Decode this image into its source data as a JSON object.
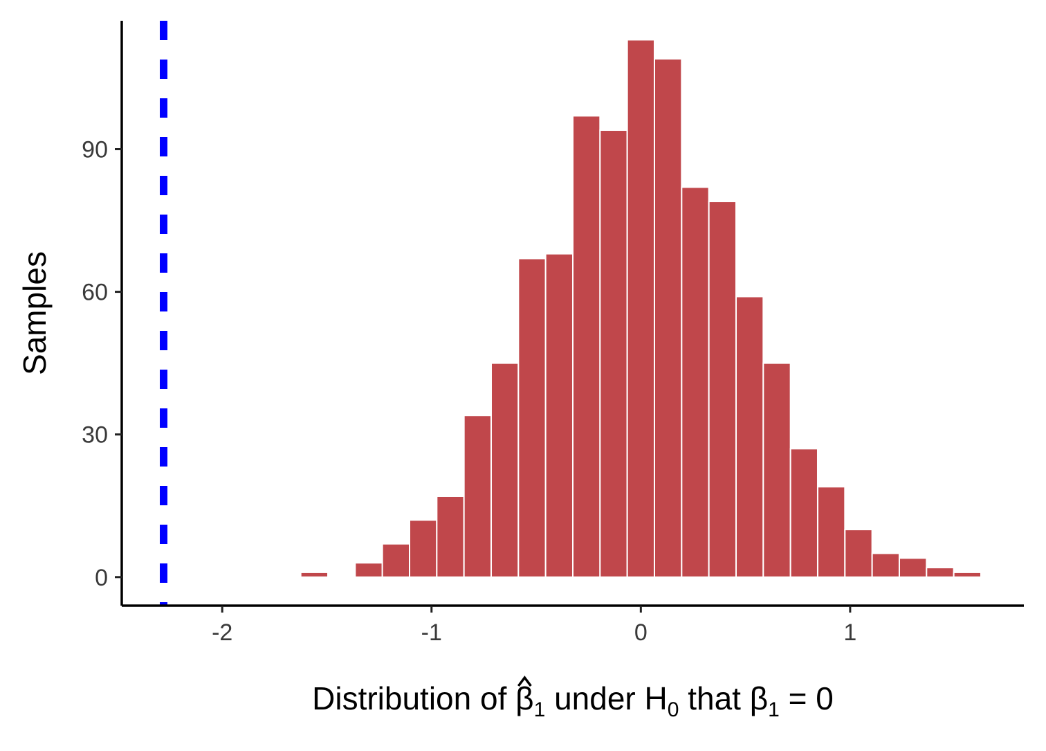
{
  "chart_data": {
    "type": "bar",
    "title": "",
    "xlabel": {
      "parts": [
        {
          "text": "Distribution of ",
          "style": "normal"
        },
        {
          "text": "β",
          "style": "normal"
        },
        {
          "text": "1",
          "style": "sub"
        },
        {
          "text": " under H",
          "style": "normal"
        },
        {
          "text": "0",
          "style": "sub"
        },
        {
          "text": " that β",
          "style": "normal"
        },
        {
          "text": "1",
          "style": "sub"
        },
        {
          "text": " = 0",
          "style": "normal"
        }
      ],
      "hat_over": "β"
    },
    "ylabel": "Samples",
    "xlim": [
      -2.48,
      1.83
    ],
    "ylim": [
      -6,
      117
    ],
    "xticks": [
      -2,
      -1,
      0,
      1
    ],
    "xtick_labels": [
      "-2",
      "-1",
      "0",
      "1"
    ],
    "yticks": [
      0,
      30,
      60,
      90
    ],
    "ytick_labels": [
      "0",
      "30",
      "60",
      "90"
    ],
    "bin_width": 0.13,
    "bins": [
      {
        "center": -1.56,
        "count": 1
      },
      {
        "center": -1.3,
        "count": 3
      },
      {
        "center": -1.17,
        "count": 7
      },
      {
        "center": -1.04,
        "count": 12
      },
      {
        "center": -0.91,
        "count": 17
      },
      {
        "center": -0.78,
        "count": 34
      },
      {
        "center": -0.65,
        "count": 45
      },
      {
        "center": -0.52,
        "count": 67
      },
      {
        "center": -0.39,
        "count": 68
      },
      {
        "center": -0.26,
        "count": 97
      },
      {
        "center": -0.13,
        "count": 94
      },
      {
        "center": 0.0,
        "count": 113
      },
      {
        "center": 0.13,
        "count": 109
      },
      {
        "center": 0.26,
        "count": 82
      },
      {
        "center": 0.39,
        "count": 79
      },
      {
        "center": 0.52,
        "count": 59
      },
      {
        "center": 0.65,
        "count": 45
      },
      {
        "center": 0.78,
        "count": 27
      },
      {
        "center": 0.91,
        "count": 19
      },
      {
        "center": 1.04,
        "count": 10
      },
      {
        "center": 1.17,
        "count": 5
      },
      {
        "center": 1.3,
        "count": 4
      },
      {
        "center": 1.43,
        "count": 2
      },
      {
        "center": 1.56,
        "count": 1
      }
    ],
    "reference_line": {
      "x": -2.28,
      "style": "dashed",
      "color": "#0000ff"
    },
    "bar_fill": "#c0474b",
    "bar_outline": "#ffffff",
    "grid": false,
    "legend": "none"
  }
}
